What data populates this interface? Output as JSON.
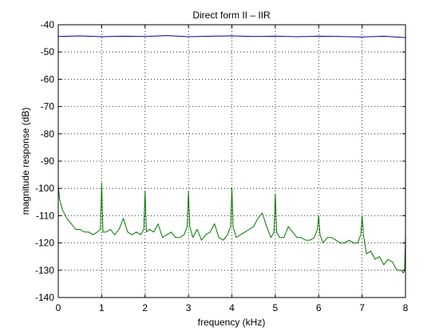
{
  "chart_data": {
    "type": "line",
    "title": "Direct form II – IIR",
    "xlabel": "frequency (kHz)",
    "ylabel": "magnitude response (dB)",
    "xlim": [
      0,
      8
    ],
    "ylim": [
      -140,
      -40
    ],
    "xticks": [
      0,
      1,
      2,
      3,
      4,
      5,
      6,
      7,
      8
    ],
    "yticks": [
      -40,
      -50,
      -60,
      -70,
      -80,
      -90,
      -100,
      -110,
      -120,
      -130,
      -140
    ],
    "grid": true,
    "series": [
      {
        "color": "#0000aa",
        "x": [
          0,
          0.5,
          1,
          1.5,
          2,
          2.5,
          3,
          3.5,
          4,
          4.5,
          5,
          5.5,
          6,
          6.5,
          7,
          7.5,
          8
        ],
        "y": [
          -44.3,
          -44.1,
          -44.4,
          -44.2,
          -44.3,
          -44.0,
          -44.4,
          -44.2,
          -44.1,
          -44.3,
          -44.2,
          -44.4,
          -44.2,
          -44.3,
          -44.5,
          -44.2,
          -44.7
        ]
      },
      {
        "color": "#007700",
        "x": [
          0,
          0.03,
          0.1,
          0.2,
          0.3,
          0.4,
          0.5,
          0.6,
          0.7,
          0.8,
          0.9,
          0.97,
          1.0,
          1.03,
          1.1,
          1.2,
          1.3,
          1.4,
          1.5,
          1.6,
          1.7,
          1.8,
          1.9,
          1.97,
          2.0,
          2.03,
          2.1,
          2.2,
          2.3,
          2.4,
          2.5,
          2.6,
          2.7,
          2.8,
          2.9,
          2.97,
          3.0,
          3.03,
          3.1,
          3.2,
          3.3,
          3.4,
          3.5,
          3.6,
          3.7,
          3.8,
          3.9,
          3.97,
          4.0,
          4.03,
          4.1,
          4.2,
          4.3,
          4.4,
          4.5,
          4.6,
          4.7,
          4.8,
          4.9,
          4.97,
          5.0,
          5.03,
          5.1,
          5.2,
          5.3,
          5.4,
          5.5,
          5.6,
          5.7,
          5.8,
          5.9,
          5.97,
          6.0,
          6.03,
          6.1,
          6.2,
          6.3,
          6.4,
          6.5,
          6.6,
          6.7,
          6.8,
          6.9,
          6.97,
          7.0,
          7.03,
          7.1,
          7.2,
          7.3,
          7.4,
          7.5,
          7.6,
          7.7,
          7.8,
          7.9,
          7.95,
          7.98,
          8.0
        ],
        "y": [
          -99,
          -104,
          -108,
          -111,
          -113,
          -115,
          -115,
          -116,
          -116,
          -117,
          -116,
          -115,
          -98,
          -116,
          -116,
          -115,
          -117,
          -115,
          -111,
          -116,
          -117,
          -116,
          -117,
          -115,
          -101,
          -116,
          -115,
          -116,
          -113,
          -118,
          -117,
          -116,
          -118,
          -118,
          -117,
          -114,
          -101,
          -114,
          -118,
          -115,
          -119,
          -117,
          -116,
          -113,
          -118,
          -119,
          -117,
          -114,
          -100,
          -114,
          -118,
          -117,
          -116,
          -115,
          -114,
          -111,
          -109,
          -114,
          -118,
          -116,
          -102,
          -116,
          -118,
          -118,
          -114,
          -116,
          -118,
          -118,
          -119,
          -119,
          -118,
          -115,
          -110,
          -117,
          -120,
          -118,
          -118,
          -119,
          -120,
          -120,
          -119,
          -120,
          -120,
          -117,
          -110,
          -117,
          -124,
          -123,
          -126,
          -125,
          -128,
          -126,
          -127,
          -130,
          -130,
          -131,
          -130,
          -117
        ]
      }
    ]
  }
}
